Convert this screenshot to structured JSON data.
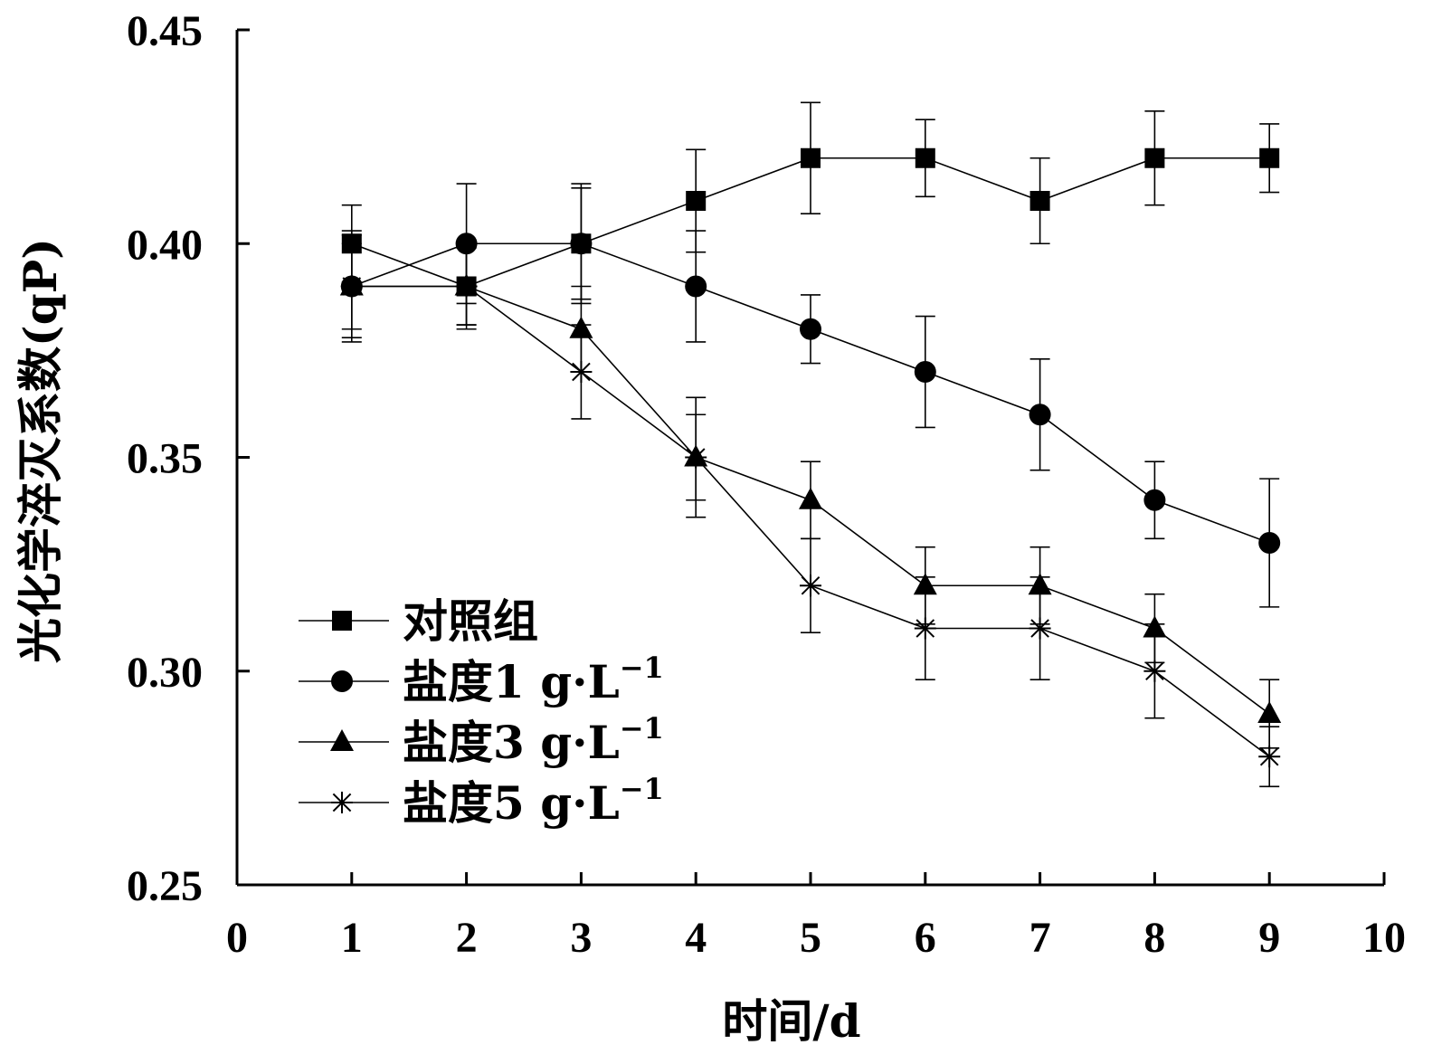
{
  "chart_data": {
    "type": "line",
    "title": "",
    "xlabel": "时间/d",
    "ylabel": "光化学淬灭系数(qP)",
    "xlim": [
      0,
      10
    ],
    "ylim": [
      0.25,
      0.45
    ],
    "x_ticks": [
      "0",
      "1",
      "2",
      "3",
      "4",
      "5",
      "6",
      "7",
      "8",
      "9",
      "10"
    ],
    "y_ticks": [
      "0.25",
      "0.30",
      "0.35",
      "0.40",
      "0.45"
    ],
    "x": [
      1,
      2,
      3,
      4,
      5,
      6,
      7,
      8,
      9
    ],
    "legend_position": "bottom-left",
    "series": [
      {
        "name": "对照组",
        "marker": "square",
        "values": [
          0.4,
          0.39,
          0.4,
          0.41,
          0.42,
          0.42,
          0.41,
          0.42,
          0.42
        ],
        "errors": [
          0.009,
          0.009,
          0.014,
          0.012,
          0.013,
          0.009,
          0.01,
          0.011,
          0.008
        ]
      },
      {
        "name": "盐度1 g·L",
        "superscript": "−1",
        "marker": "circle",
        "values": [
          0.39,
          0.4,
          0.4,
          0.39,
          0.38,
          0.37,
          0.36,
          0.34,
          0.33
        ],
        "errors": [
          0.013,
          0.014,
          0.013,
          0.013,
          0.008,
          0.013,
          0.013,
          0.009,
          0.015
        ]
      },
      {
        "name": "盐度3 g·L",
        "superscript": "−1",
        "marker": "triangle",
        "values": [
          0.39,
          0.39,
          0.38,
          0.35,
          0.34,
          0.32,
          0.32,
          0.31,
          0.29
        ],
        "errors": [
          0.012,
          0.01,
          0.01,
          0.014,
          0.009,
          0.009,
          0.009,
          0.008,
          0.008
        ]
      },
      {
        "name": "盐度5 g·L",
        "superscript": "−1",
        "marker": "asterisk",
        "values": [
          0.39,
          0.39,
          0.37,
          0.35,
          0.32,
          0.31,
          0.31,
          0.3,
          0.28
        ],
        "errors": [
          0.01,
          0.009,
          0.011,
          0.01,
          0.011,
          0.012,
          0.012,
          0.011,
          0.007
        ]
      }
    ]
  }
}
